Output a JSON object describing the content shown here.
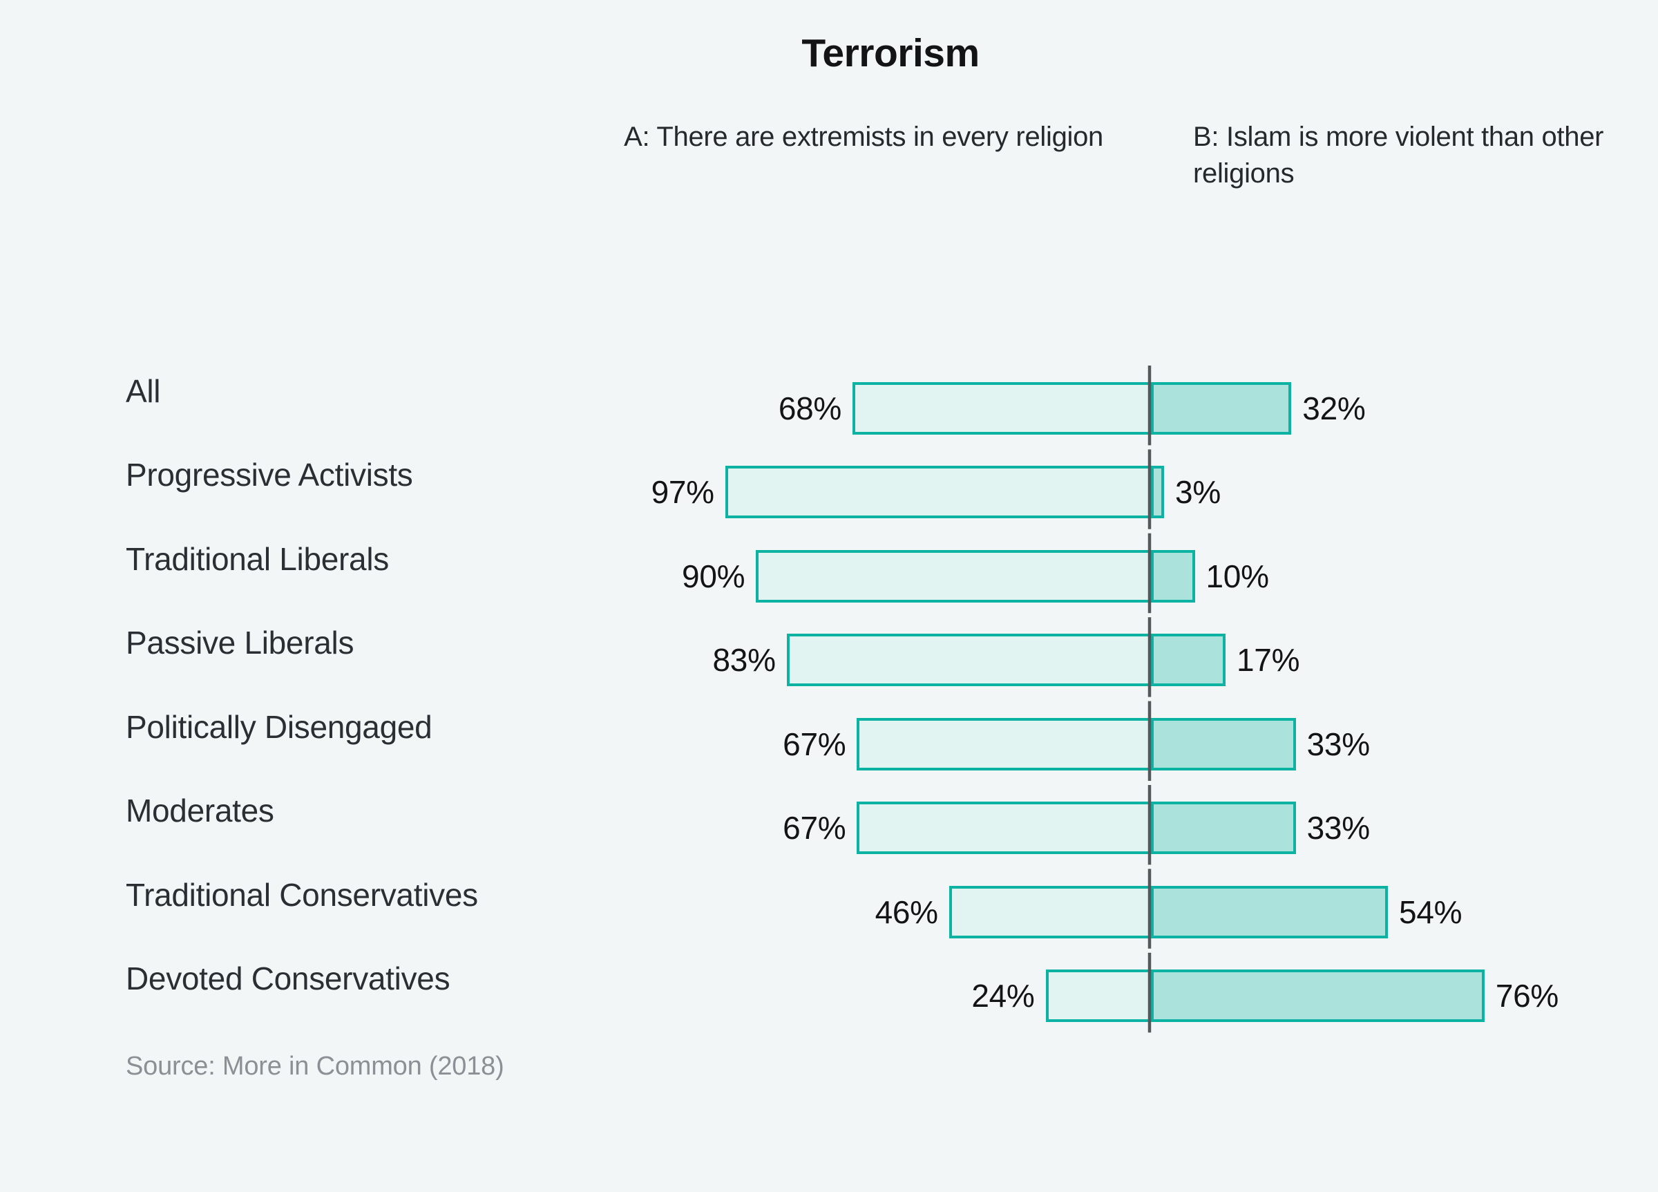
{
  "page": {
    "background_color": "#f3f6f7"
  },
  "colors": {
    "bar_border": "#0db3a2",
    "bar_fill_a": "#e1f4f1",
    "bar_fill_b": "#ace2dc",
    "divider_line": "#55585a",
    "title_text": "#121416",
    "label_text": "#2b2f33",
    "value_text": "#121416",
    "source_text": "#8a9094"
  },
  "chart_data": {
    "type": "bar",
    "variant": "horizontal-diverging-100pct-stacked",
    "title": "Terrorism",
    "column_headers": {
      "a": "A: There are extremists in every religion",
      "b": "B: Islam is more violent than other religions"
    },
    "categories": [
      "All",
      "Progressive Activists",
      "Traditional Liberals",
      "Passive Liberals",
      "Politically Disengaged",
      "Moderates",
      "Traditional Conservatives",
      "Devoted Conservatives"
    ],
    "series": [
      {
        "name": "A: There are extremists in every religion",
        "values": [
          68,
          97,
          90,
          83,
          67,
          67,
          46,
          24
        ]
      },
      {
        "name": "B: Islam is more violent than other religions",
        "values": [
          32,
          3,
          10,
          17,
          33,
          33,
          54,
          76
        ]
      }
    ],
    "rows": [
      {
        "label": "All",
        "a": 68,
        "b": 32,
        "a_text": "68%",
        "b_text": "32%"
      },
      {
        "label": "Progressive Activists",
        "a": 97,
        "b": 3,
        "a_text": "97%",
        "b_text": "3%"
      },
      {
        "label": "Traditional Liberals",
        "a": 90,
        "b": 10,
        "a_text": "90%",
        "b_text": "10%"
      },
      {
        "label": "Passive Liberals",
        "a": 83,
        "b": 17,
        "a_text": "83%",
        "b_text": "17%"
      },
      {
        "label": "Politically Disengaged",
        "a": 67,
        "b": 33,
        "a_text": "67%",
        "b_text": "33%"
      },
      {
        "label": "Moderates",
        "a": 67,
        "b": 33,
        "a_text": "67%",
        "b_text": "33%"
      },
      {
        "label": "Traditional Conservatives",
        "a": 46,
        "b": 54,
        "a_text": "46%",
        "b_text": "54%"
      },
      {
        "label": "Devoted Conservatives",
        "a": 24,
        "b": 76,
        "a_text": "24%",
        "b_text": "76%"
      }
    ],
    "value_suffix": "%",
    "xlim": [
      0,
      100
    ],
    "grid": false,
    "legend_position": "top-column-headers",
    "divider": "dashed vertical line at A/B split",
    "source": "Source: More in Common (2018)"
  }
}
